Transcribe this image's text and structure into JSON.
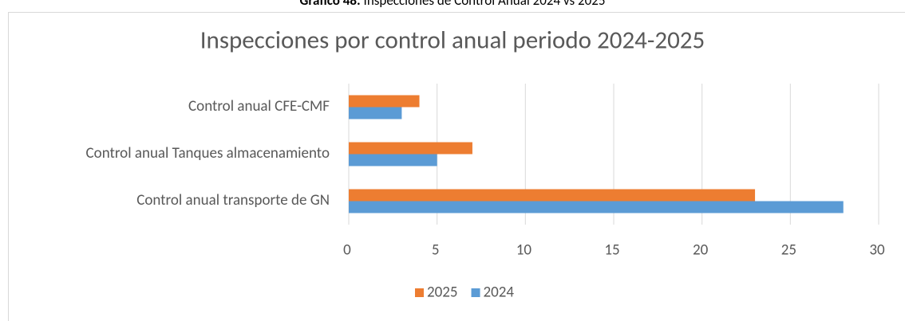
{
  "caption_label": "Gráfico 48:",
  "caption": "Inspecciones de Control Anual 2024 vs 2025",
  "chart_data": {
    "type": "hbar",
    "title": "Inspecciones por control anual periodo 2024-2025",
    "categories": [
      "Control anual CFE-CMF",
      "Control anual Tanques almacenamiento",
      "Control anual transporte de GN"
    ],
    "series": [
      {
        "name": "2025",
        "color": "#ed7d31",
        "values": [
          4,
          7,
          23
        ]
      },
      {
        "name": "2024",
        "color": "#5b9bd5",
        "values": [
          3,
          5,
          28
        ]
      }
    ],
    "xlim": [
      0,
      30
    ],
    "xticks": [
      0,
      5,
      10,
      15,
      20,
      25,
      30
    ],
    "grid": true,
    "legend": "bottom"
  }
}
